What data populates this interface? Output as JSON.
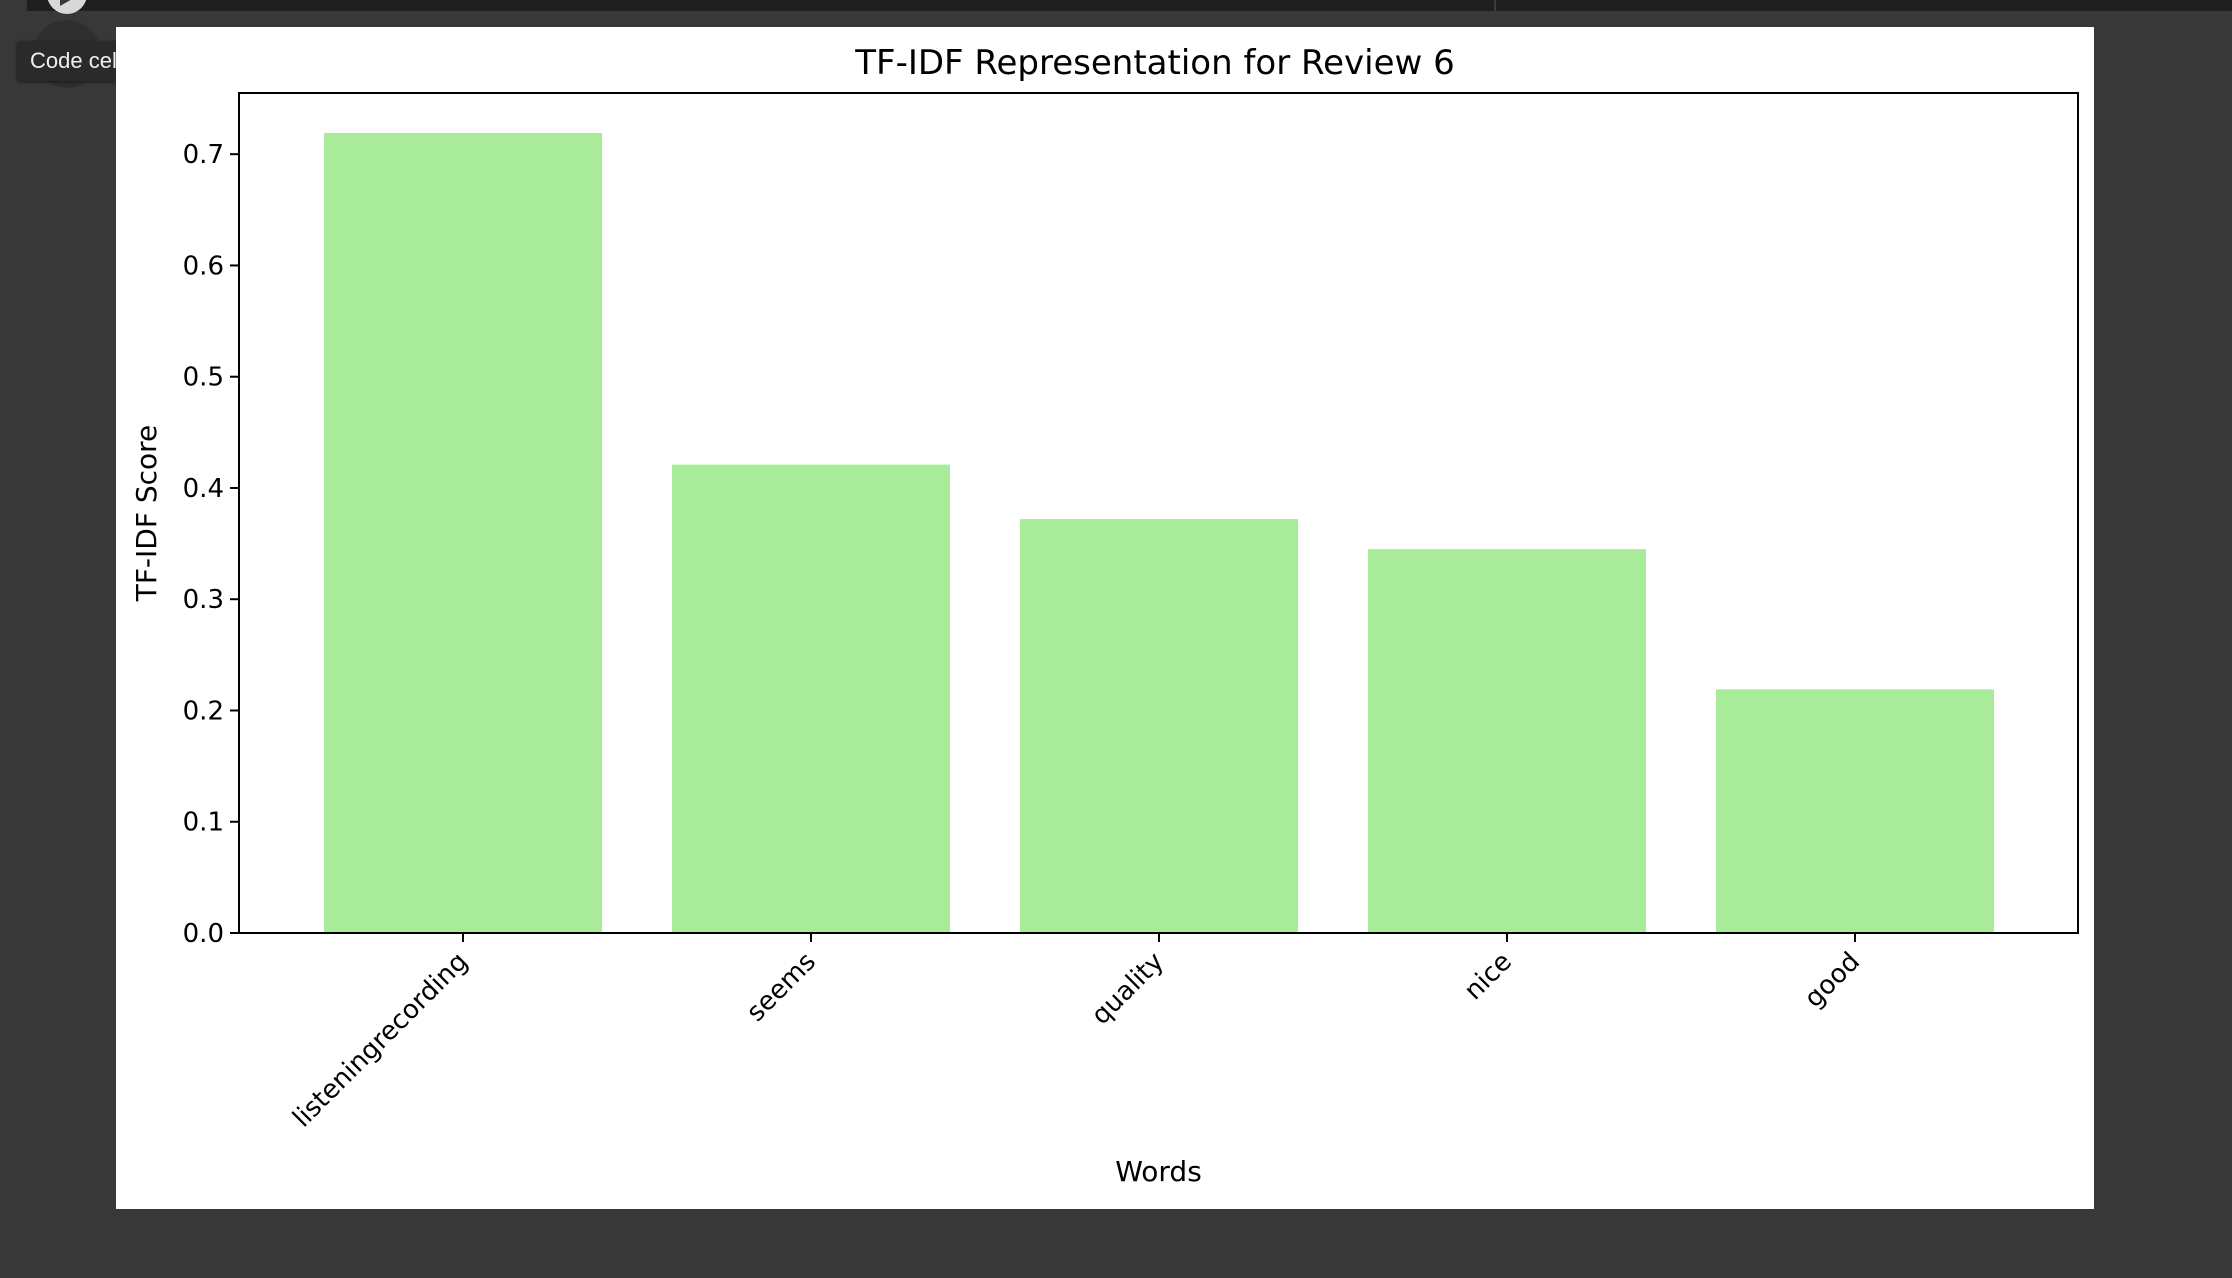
{
  "tooltip": {
    "text": "Code cell output actions"
  },
  "colors": {
    "bar": "#a8eb98",
    "background": "#383838",
    "panel": "#ffffff"
  },
  "icons": {
    "run": "play-icon"
  },
  "chart_data": {
    "type": "bar",
    "title": "TF-IDF Representation for Review 6",
    "xlabel": "Words",
    "ylabel": "TF-IDF Score",
    "categories": [
      "listeningrecording",
      "seems",
      "quality",
      "nice",
      "good"
    ],
    "values": [
      0.719,
      0.421,
      0.372,
      0.345,
      0.219
    ],
    "ylim": [
      0,
      0.755
    ],
    "yticks": [
      0.0,
      0.1,
      0.2,
      0.3,
      0.4,
      0.5,
      0.6,
      0.7
    ],
    "ytick_labels": [
      "0.0",
      "0.1",
      "0.2",
      "0.3",
      "0.4",
      "0.5",
      "0.6",
      "0.7"
    ],
    "bar_color": "#a8eb98",
    "grid": false,
    "legend": "none",
    "xtick_rotation": -45
  }
}
